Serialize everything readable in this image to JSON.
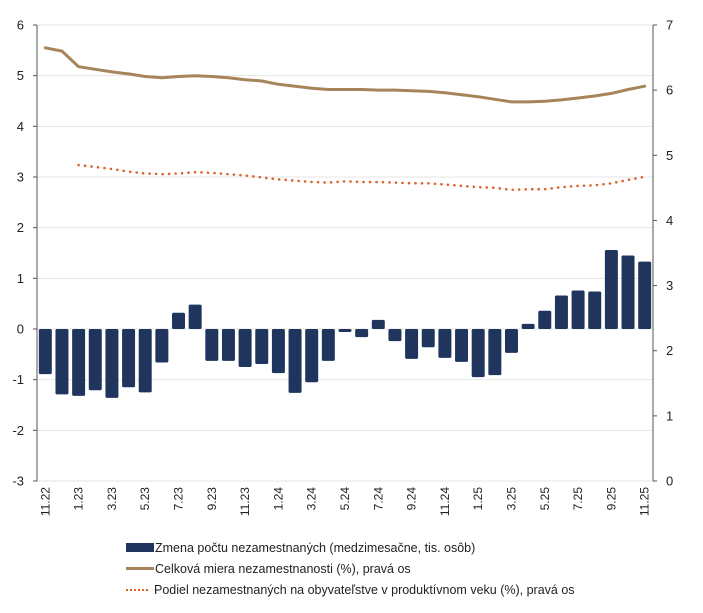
{
  "chart_data": {
    "type": "bar",
    "title": "",
    "categories": [
      "11.22",
      "12.22",
      "1.23",
      "2.23",
      "3.23",
      "4.23",
      "5.23",
      "6.23",
      "7.23",
      "8.23",
      "9.23",
      "10.23",
      "11.23",
      "12.23",
      "1.24",
      "2.24",
      "3.24",
      "4.24",
      "5.24",
      "6.24",
      "7.24",
      "8.24",
      "9.24",
      "10.24",
      "11.24",
      "12.24",
      "1.25",
      "2.25",
      "3.25",
      "4.25",
      "5.25",
      "6.25",
      "7.25",
      "8.25",
      "9.25",
      "10.25",
      "11.25"
    ],
    "x_tick_labels": [
      "11.22",
      "1.23",
      "3.23",
      "5.23",
      "7.23",
      "9.23",
      "11.23",
      "1.24",
      "3.24",
      "5.24",
      "7.24",
      "9.24",
      "11.24",
      "1.25",
      "3.25",
      "5.25",
      "7.25",
      "9.25",
      "11.25"
    ],
    "y_left": {
      "min": -3,
      "max": 6,
      "ticks": [
        "-3",
        "-2",
        "-1",
        "0",
        "1",
        "2",
        "3",
        "4",
        "5",
        "6"
      ]
    },
    "y_right": {
      "min": 0,
      "max": 7,
      "ticks": [
        "0",
        "1",
        "2",
        "3",
        "4",
        "5",
        "6",
        "7"
      ]
    },
    "grid": true,
    "legend_position": "bottom",
    "series": [
      {
        "name": "Zmena počtu nezamestnaných (medzimesačne, tis. osôb)",
        "type": "bar",
        "axis": "left",
        "color": "#1f355e",
        "values": [
          -0.89,
          -1.29,
          -1.32,
          -1.21,
          -1.36,
          -1.15,
          -1.25,
          -0.66,
          0.32,
          0.48,
          -0.63,
          -0.63,
          -0.75,
          -0.69,
          -0.87,
          -1.26,
          -1.05,
          -0.63,
          -0.06,
          -0.16,
          0.18,
          -0.24,
          -0.59,
          -0.36,
          -0.57,
          -0.65,
          -0.95,
          -0.91,
          -0.47,
          0.1,
          0.36,
          0.66,
          0.76,
          0.74,
          1.56,
          1.45,
          1.33
        ]
      },
      {
        "name": "Celková miera nezamestnanosti (%), pravá os",
        "type": "line",
        "axis": "right",
        "color": "#a8845a",
        "values": [
          6.65,
          6.6,
          6.36,
          6.32,
          6.28,
          6.25,
          6.21,
          6.19,
          6.21,
          6.22,
          6.21,
          6.19,
          6.16,
          6.14,
          6.09,
          6.06,
          6.03,
          6.01,
          6.01,
          6.01,
          6.0,
          6.0,
          5.99,
          5.98,
          5.96,
          5.93,
          5.9,
          5.86,
          5.82,
          5.82,
          5.83,
          5.85,
          5.88,
          5.91,
          5.95,
          6.01,
          6.06
        ]
      },
      {
        "name": "Podiel nezamestnaných na obyvateľstve v produktívnom veku (%), pravá os",
        "type": "line-dotted",
        "axis": "right",
        "color": "#d9642b",
        "values": [
          null,
          null,
          4.85,
          4.82,
          4.79,
          4.75,
          4.72,
          4.71,
          4.72,
          4.74,
          4.73,
          4.71,
          4.69,
          4.66,
          4.63,
          4.61,
          4.59,
          4.58,
          4.6,
          4.59,
          4.59,
          4.58,
          4.57,
          4.57,
          4.55,
          4.53,
          4.51,
          4.5,
          4.47,
          4.48,
          4.48,
          4.51,
          4.53,
          4.54,
          4.57,
          4.62,
          4.67
        ]
      }
    ]
  },
  "legend": {
    "items": [
      {
        "label": "Zmena počtu nezamestnaných (medzimesačne, tis. osôb)",
        "swatch": "bar"
      },
      {
        "label": "Celková miera nezamestnanosti (%), pravá os",
        "swatch": "line"
      },
      {
        "label": "Podiel nezamestnaných na obyvateľstve v produktívnom veku (%), pravá os",
        "swatch": "dotted"
      }
    ]
  }
}
